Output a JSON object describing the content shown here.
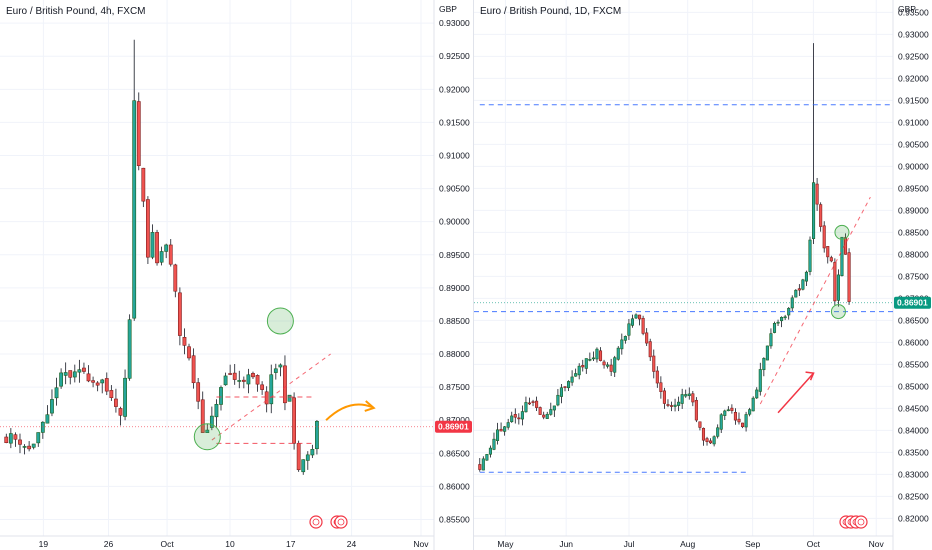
{
  "charts": [
    {
      "pane_id": "left",
      "legend": "Euro / British Pound, 4h, FXCM",
      "currency": "GBP",
      "y_ticks": [
        "0.93000",
        "0.92500",
        "0.92000",
        "0.91500",
        "0.91000",
        "0.90500",
        "0.90000",
        "0.89500",
        "0.89000",
        "0.88500",
        "0.88000",
        "0.87500",
        "0.87000",
        "0.86500",
        "0.86000",
        "0.85500"
      ],
      "x_ticks": [
        "19",
        "26",
        "Oct",
        "10",
        "17",
        "24",
        "Nov"
      ],
      "last_price": "0.86901",
      "last_price_color": "#f23645"
    },
    {
      "pane_id": "right",
      "legend": "Euro / British Pound, 1D, FXCM",
      "currency": "GBP",
      "y_ticks": [
        "0.93500",
        "0.93000",
        "0.92500",
        "0.92000",
        "0.91500",
        "0.91000",
        "0.90500",
        "0.90000",
        "0.89500",
        "0.89000",
        "0.88500",
        "0.88000",
        "0.87500",
        "0.87000",
        "0.86500",
        "0.86000",
        "0.85500",
        "0.85000",
        "0.84500",
        "0.84000",
        "0.83500",
        "0.83000",
        "0.82500",
        "0.82000"
      ],
      "x_ticks": [
        "May",
        "Jun",
        "Jul",
        "Aug",
        "Sep",
        "Oct",
        "Nov"
      ],
      "last_price": "0.86901",
      "last_price_color": "#089981"
    }
  ],
  "chart_data": [
    {
      "type": "candlestick",
      "title": "Euro / British Pound, 4h, FXCM",
      "timeframe": "4h",
      "ylabel": "GBP",
      "ylim": [
        0.8525,
        0.9335
      ],
      "x_tick_labels": [
        "19",
        "26",
        "Oct",
        "10",
        "17",
        "24",
        "Nov"
      ],
      "close_path": [
        [
          0,
          0.8675
        ],
        [
          3,
          0.867
        ],
        [
          5,
          0.8655
        ],
        [
          7,
          0.868
        ],
        [
          9,
          0.87
        ],
        [
          11,
          0.8755
        ],
        [
          13,
          0.877
        ],
        [
          15,
          0.8765
        ],
        [
          17,
          0.8775
        ],
        [
          19,
          0.876
        ],
        [
          21,
          0.876
        ],
        [
          22,
          0.8735
        ],
        [
          24,
          0.872
        ],
        [
          25,
          0.87
        ],
        [
          26,
          0.876
        ],
        [
          27,
          0.8845
        ],
        [
          28,
          0.919
        ],
        [
          29,
          0.908
        ],
        [
          30,
          0.904
        ],
        [
          31,
          0.895
        ],
        [
          32,
          0.8975
        ],
        [
          33,
          0.8935
        ],
        [
          34,
          0.8955
        ],
        [
          35,
          0.8965
        ],
        [
          36,
          0.893
        ],
        [
          37,
          0.889
        ],
        [
          38,
          0.883
        ],
        [
          39,
          0.8815
        ],
        [
          40,
          0.879
        ],
        [
          41,
          0.876
        ],
        [
          42,
          0.873
        ],
        [
          43,
          0.869
        ],
        [
          44,
          0.868
        ],
        [
          45,
          0.87
        ],
        [
          46,
          0.873
        ],
        [
          47,
          0.8745
        ],
        [
          48,
          0.8765
        ],
        [
          49,
          0.877
        ],
        [
          50,
          0.876
        ],
        [
          52,
          0.8765
        ],
        [
          54,
          0.876
        ],
        [
          56,
          0.874
        ],
        [
          57,
          0.873
        ],
        [
          58,
          0.876
        ],
        [
          59,
          0.878
        ],
        [
          60,
          0.878
        ],
        [
          61,
          0.8735
        ],
        [
          62,
          0.873
        ],
        [
          63,
          0.8665
        ],
        [
          64,
          0.8625
        ],
        [
          65,
          0.8635
        ],
        [
          66,
          0.864
        ],
        [
          67,
          0.866
        ],
        [
          68,
          0.869
        ]
      ],
      "max_high": 0.9275,
      "low_bound": 0.8615,
      "annotations": [
        {
          "type": "horizontal-dashed",
          "value": 0.8665,
          "color": "#f23645"
        },
        {
          "type": "horizontal-dashed",
          "value": 0.8735,
          "color": "#f23645"
        },
        {
          "type": "trendline-dashed",
          "from": [
            45,
            0.867
          ],
          "to": [
            71,
            0.88
          ],
          "color": "#f23645"
        },
        {
          "type": "circle-marker",
          "at": [
            44,
            0.8675
          ],
          "color": "#4caf50"
        },
        {
          "type": "circle-marker",
          "at": [
            60,
            0.885
          ],
          "color": "#4caf50"
        },
        {
          "type": "curved-arrow",
          "from": [
            70,
            0.87
          ],
          "to": [
            80,
            0.872
          ],
          "color": "#ff9800"
        }
      ],
      "last_price": 0.86901
    },
    {
      "type": "candlestick",
      "title": "Euro / British Pound, 1D, FXCM",
      "timeframe": "1D",
      "ylabel": "GBP",
      "ylim": [
        0.816,
        0.9378
      ],
      "x_tick_labels": [
        "May",
        "Jun",
        "Jul",
        "Aug",
        "Sep",
        "Oct",
        "Nov"
      ],
      "close_path": [
        [
          0,
          0.832
        ],
        [
          4,
          0.8385
        ],
        [
          8,
          0.842
        ],
        [
          12,
          0.844
        ],
        [
          14,
          0.847
        ],
        [
          16,
          0.8455
        ],
        [
          18,
          0.843
        ],
        [
          20,
          0.8445
        ],
        [
          23,
          0.849
        ],
        [
          26,
          0.852
        ],
        [
          29,
          0.855
        ],
        [
          31,
          0.856
        ],
        [
          33,
          0.858
        ],
        [
          35,
          0.8545
        ],
        [
          37,
          0.854
        ],
        [
          39,
          0.858
        ],
        [
          41,
          0.862
        ],
        [
          43,
          0.865
        ],
        [
          45,
          0.866
        ],
        [
          47,
          0.859
        ],
        [
          50,
          0.851
        ],
        [
          52,
          0.847
        ],
        [
          54,
          0.8455
        ],
        [
          56,
          0.847
        ],
        [
          58,
          0.849
        ],
        [
          60,
          0.846
        ],
        [
          62,
          0.84
        ],
        [
          64,
          0.837
        ],
        [
          66,
          0.839
        ],
        [
          68,
          0.843
        ],
        [
          70,
          0.845
        ],
        [
          72,
          0.843
        ],
        [
          74,
          0.841
        ],
        [
          76,
          0.845
        ],
        [
          78,
          0.85
        ],
        [
          80,
          0.857
        ],
        [
          82,
          0.862
        ],
        [
          84,
          0.865
        ],
        [
          86,
          0.866
        ],
        [
          88,
          0.87
        ],
        [
          90,
          0.872
        ],
        [
          92,
          0.876
        ],
        [
          93,
          0.883
        ],
        [
          94,
          0.896
        ],
        [
          95,
          0.892
        ],
        [
          96,
          0.887
        ],
        [
          97,
          0.882
        ],
        [
          99,
          0.878
        ],
        [
          100,
          0.87
        ],
        [
          101,
          0.876
        ],
        [
          102,
          0.883
        ],
        [
          103,
          0.88
        ],
        [
          104,
          0.869
        ]
      ],
      "max_high": 0.928,
      "low_bound": 0.8305,
      "annotations": [
        {
          "type": "horizontal-dashed",
          "value": 0.914,
          "color": "#2962ff"
        },
        {
          "type": "horizontal-dashed",
          "value": 0.867,
          "color": "#2962ff"
        },
        {
          "type": "horizontal-dashed",
          "value": 0.8305,
          "color": "#2962ff"
        },
        {
          "type": "trendline-dashed",
          "from": [
            79,
            0.846
          ],
          "to": [
            110,
            0.893
          ],
          "color": "#f23645"
        },
        {
          "type": "arrow",
          "from": [
            84,
            0.844
          ],
          "to": [
            94,
            0.853
          ],
          "color": "#f23645"
        },
        {
          "type": "circle-marker",
          "at": [
            102,
            0.885
          ],
          "color": "#4caf50"
        },
        {
          "type": "circle-marker",
          "at": [
            101,
            0.867
          ],
          "color": "#4caf50"
        }
      ],
      "last_price": 0.86901
    }
  ]
}
